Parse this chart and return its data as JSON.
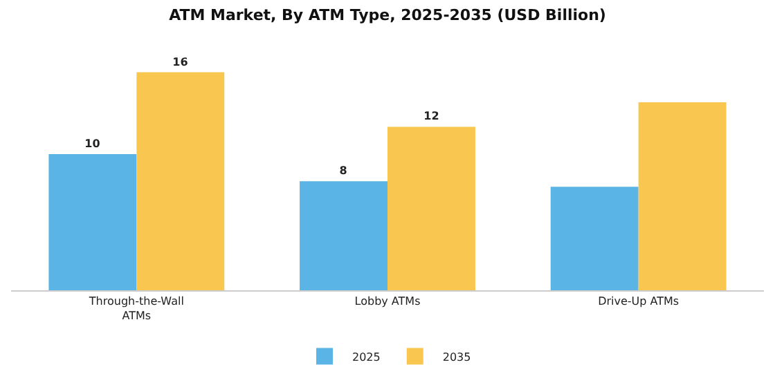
{
  "chart_data": {
    "type": "bar",
    "title": "ATM Market, By ATM Type, 2025-2035 (USD Billion)",
    "categories": [
      "Through-the-Wall ATMs",
      "Lobby ATMs",
      "Drive-Up ATMs"
    ],
    "series": [
      {
        "name": "2025",
        "color": "#5ab4e5",
        "values": [
          10,
          8,
          7.6
        ],
        "value_labels": [
          "10",
          "8",
          null
        ]
      },
      {
        "name": "2035",
        "color": "#f9c74f",
        "values": [
          16,
          12,
          13.8
        ],
        "value_labels": [
          "16",
          "12",
          null
        ]
      }
    ],
    "tick_labels": "x",
    "grid": false,
    "legend": "bottom"
  }
}
